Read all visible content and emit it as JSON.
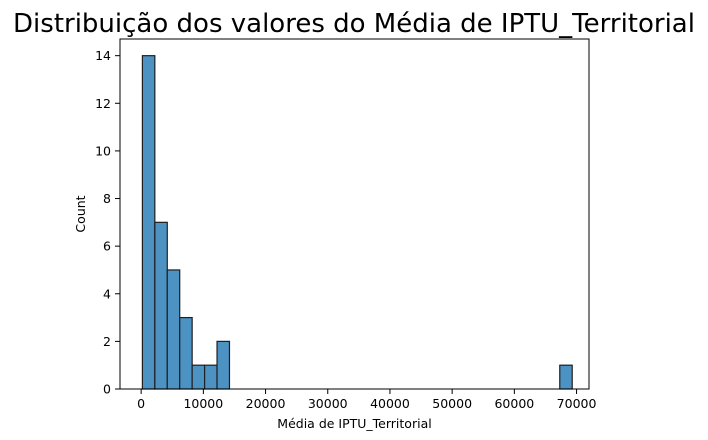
{
  "chart_data": {
    "type": "bar",
    "title": "Distribuição dos valores do Média de IPTU_Territorial",
    "xlabel": "Média de IPTU_Territorial",
    "ylabel": "Count",
    "xlim": [
      -3400,
      72000
    ],
    "ylim": [
      0,
      14.7
    ],
    "xticks": [
      0,
      10000,
      20000,
      30000,
      40000,
      50000,
      60000,
      70000
    ],
    "yticks": [
      0,
      2,
      4,
      6,
      8,
      10,
      12,
      14
    ],
    "bar_color": "#4c92c3",
    "bins": [
      {
        "x0": 200,
        "x1": 2200,
        "count": 14
      },
      {
        "x0": 2200,
        "x1": 4200,
        "count": 7
      },
      {
        "x0": 4200,
        "x1": 6200,
        "count": 5
      },
      {
        "x0": 6200,
        "x1": 8200,
        "count": 3
      },
      {
        "x0": 8200,
        "x1": 10200,
        "count": 1
      },
      {
        "x0": 10200,
        "x1": 12200,
        "count": 1
      },
      {
        "x0": 12200,
        "x1": 14200,
        "count": 2
      },
      {
        "x0": 67300,
        "x1": 69300,
        "count": 1
      }
    ],
    "grid": false,
    "legend": "none"
  }
}
